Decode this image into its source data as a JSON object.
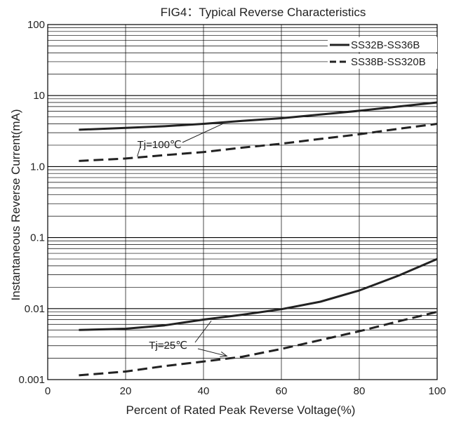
{
  "chart_data": {
    "type": "line",
    "title": "FIG4：Typical Reverse Characteristics",
    "xlabel": "Percent of Rated Peak Reverse Voltage(%)",
    "ylabel": "Instantaneous Reverse Current(mA)",
    "x_scale": "linear",
    "y_scale": "log",
    "xlim": [
      0,
      100
    ],
    "ylim": [
      0.001,
      100
    ],
    "x_ticks": [
      "0",
      "20",
      "40",
      "60",
      "80",
      "100"
    ],
    "y_ticks": [
      "0.001",
      "0.01",
      "0.1",
      "1.0",
      "10",
      "100"
    ],
    "grid": true,
    "legend_position": "top-right",
    "series": [
      {
        "name": "SS32B-SS36B",
        "style": "solid",
        "condition": "Tj=100℃",
        "x": [
          8,
          20,
          30,
          40,
          50,
          60,
          70,
          80,
          90,
          100
        ],
        "y": [
          3.3,
          3.5,
          3.7,
          4.0,
          4.4,
          4.8,
          5.4,
          6.1,
          7.0,
          8.0
        ]
      },
      {
        "name": "SS38B-SS320B",
        "style": "dashed",
        "condition": "Tj=100℃",
        "x": [
          8,
          20,
          30,
          40,
          50,
          60,
          70,
          80,
          90,
          100
        ],
        "y": [
          1.2,
          1.3,
          1.45,
          1.6,
          1.85,
          2.1,
          2.45,
          2.85,
          3.4,
          4.0
        ]
      },
      {
        "name": "SS32B-SS36B",
        "style": "solid",
        "condition": "Tj=25℃",
        "x": [
          8,
          20,
          30,
          40,
          50,
          60,
          70,
          80,
          90,
          100
        ],
        "y": [
          0.005,
          0.0052,
          0.0058,
          0.007,
          0.0082,
          0.0098,
          0.0125,
          0.018,
          0.029,
          0.05
        ]
      },
      {
        "name": "SS38B-SS320B",
        "style": "dashed",
        "condition": "Tj=25℃",
        "x": [
          8,
          20,
          30,
          40,
          50,
          60,
          70,
          80,
          90,
          100
        ],
        "y": [
          0.00115,
          0.0013,
          0.00155,
          0.0018,
          0.0021,
          0.0027,
          0.0036,
          0.0048,
          0.0066,
          0.009
        ]
      }
    ],
    "annotations": [
      {
        "text": "Tj=100℃",
        "x": 23,
        "y": 1.3
      },
      {
        "text": "Tj=25℃",
        "x": 26,
        "y": 0.0025
      }
    ]
  }
}
